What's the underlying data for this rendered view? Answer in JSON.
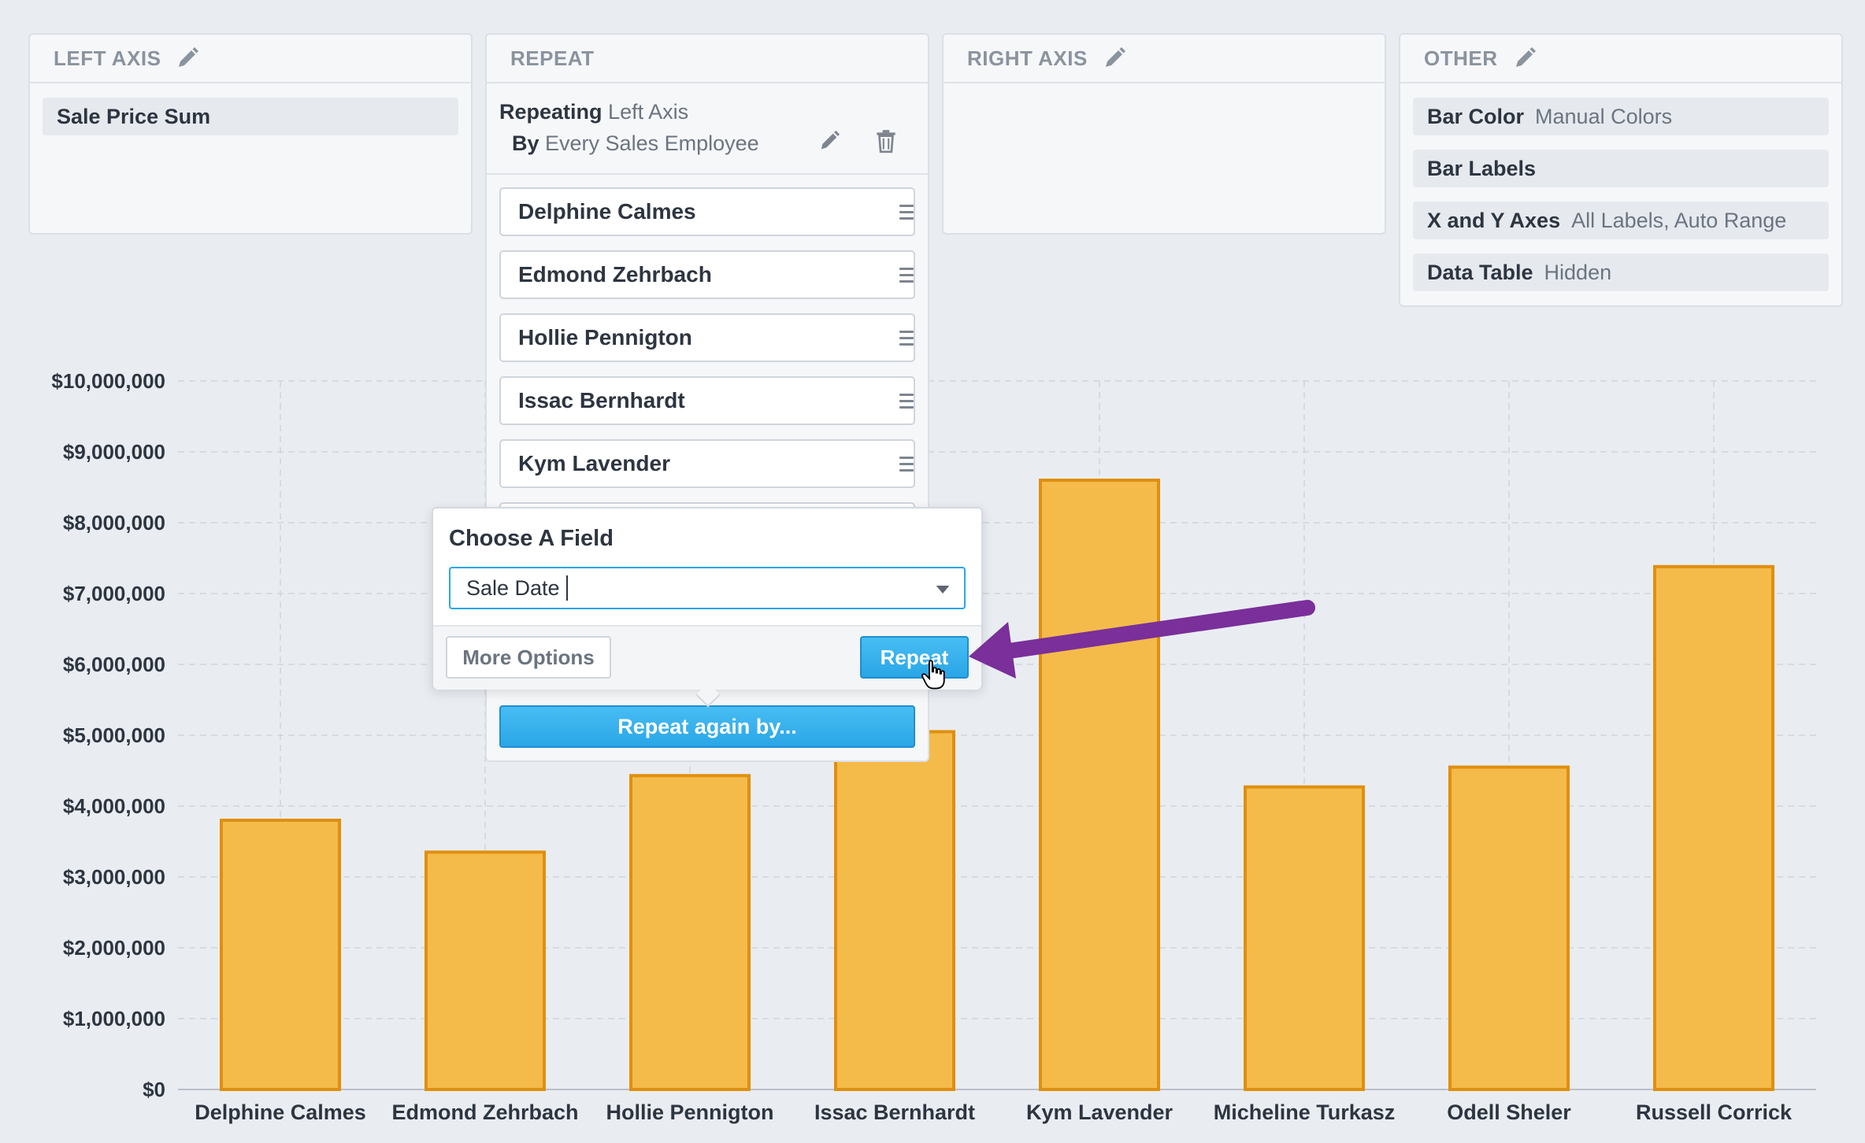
{
  "panels": {
    "left_axis": {
      "title": "LEFT AXIS",
      "item": "Sale Price Sum"
    },
    "repeat": {
      "title": "REPEAT",
      "repeating_label": "Repeating",
      "repeating_value": "Left Axis",
      "by_label": "By",
      "by_value": "Every Sales Employee",
      "items": [
        "Delphine Calmes",
        "Edmond Zehrbach",
        "Hollie Pennigton",
        "Issac Bernhardt",
        "Kym Lavender"
      ],
      "repeat_again_label": "Repeat again by..."
    },
    "right_axis": {
      "title": "RIGHT AXIS"
    },
    "other": {
      "title": "OTHER",
      "rows": [
        {
          "label": "Bar Color",
          "value": "Manual Colors"
        },
        {
          "label": "Bar Labels",
          "value": ""
        },
        {
          "label": "X and Y Axes",
          "value": "All Labels, Auto Range"
        },
        {
          "label": "Data Table",
          "value": "Hidden"
        }
      ]
    }
  },
  "popup": {
    "title": "Choose A Field",
    "field_value": "Sale Date",
    "more_options_label": "More Options",
    "repeat_label": "Repeat"
  },
  "colors": {
    "bar_fill": "#f4bb4b",
    "bar_stroke": "#e08f0d",
    "accent": "#2aa6e6",
    "arrow": "#7a2f9a"
  },
  "chart_data": {
    "type": "bar",
    "categories": [
      "Delphine Calmes",
      "Edmond Zehrbach",
      "Hollie Pennigton",
      "Issac Bernhardt",
      "Kym Lavender",
      "Micheline Turkasz",
      "Odell Sheler",
      "Russell Corrick"
    ],
    "values": [
      3800000,
      3350000,
      4430000,
      5050000,
      8600000,
      4270000,
      4550000,
      7380000
    ],
    "ylim": [
      0,
      10000000
    ],
    "yticks": [
      0,
      1000000,
      2000000,
      3000000,
      4000000,
      5000000,
      6000000,
      7000000,
      8000000,
      9000000,
      10000000
    ],
    "ytick_labels": [
      "$0",
      "$1,000,000",
      "$2,000,000",
      "$3,000,000",
      "$4,000,000",
      "$5,000,000",
      "$6,000,000",
      "$7,000,000",
      "$8,000,000",
      "$9,000,000",
      "$10,000,000"
    ],
    "grid": true
  }
}
